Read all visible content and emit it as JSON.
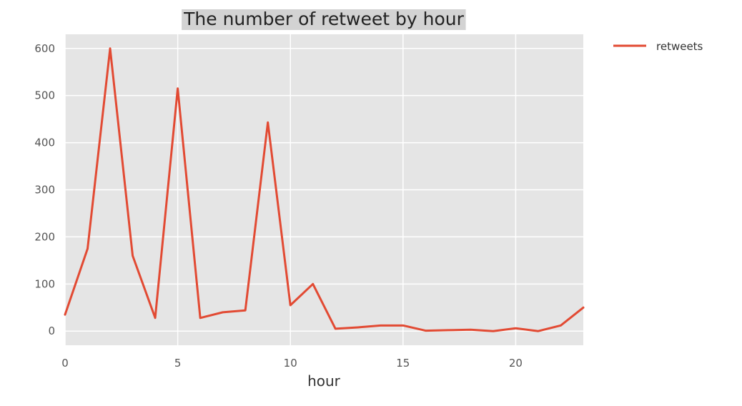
{
  "chart_data": {
    "type": "line",
    "title": "The number of retweet by hour",
    "xlabel": "hour",
    "ylabel": "",
    "xlim": [
      0,
      23
    ],
    "ylim": [
      -30,
      630
    ],
    "xticks": [
      0,
      5,
      10,
      15,
      20
    ],
    "yticks": [
      0,
      100,
      200,
      300,
      400,
      500,
      600
    ],
    "grid": true,
    "style": "ggplot",
    "legend_position": "outside-top-right",
    "x": [
      0,
      1,
      2,
      3,
      4,
      5,
      6,
      7,
      8,
      9,
      10,
      11,
      12,
      13,
      14,
      15,
      16,
      17,
      18,
      19,
      20,
      21,
      22,
      23
    ],
    "series": [
      {
        "name": "retweets",
        "color": "#E24A33",
        "values": [
          35,
          175,
          600,
          160,
          28,
          515,
          28,
          40,
          44,
          443,
          55,
          100,
          5,
          8,
          12,
          12,
          1,
          2,
          3,
          0,
          6,
          0,
          12,
          50
        ]
      }
    ],
    "colors": {
      "plot_background": "#E5E5E5",
      "grid": "#FFFFFF",
      "title_highlight": "#D3D3D3"
    }
  }
}
